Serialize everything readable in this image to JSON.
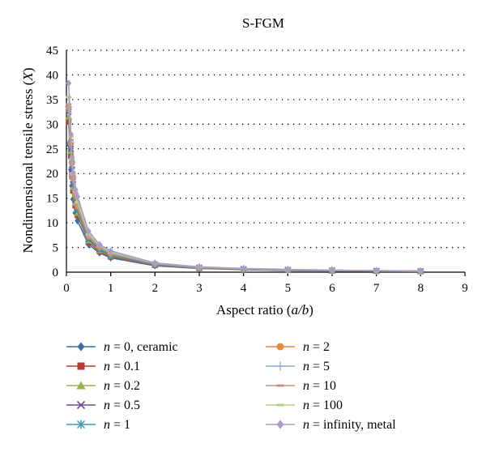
{
  "chart_data": {
    "type": "line",
    "title": "S-FGM",
    "xlabel": "Aspect ratio (a/b)",
    "ylabel": "Nondimensional tensile stress (X)",
    "xlim": [
      0,
      9
    ],
    "ylim": [
      0,
      45
    ],
    "x_ticks": [
      "0",
      "1",
      "2",
      "3",
      "4",
      "5",
      "6",
      "7",
      "8",
      "9"
    ],
    "y_ticks": [
      "0",
      "5",
      "10",
      "15",
      "20",
      "25",
      "30",
      "35",
      "40",
      "45"
    ],
    "grid": "horizontal dotted",
    "legend_position": "bottom",
    "x": [
      0.05,
      0.1,
      0.125,
      0.15,
      0.2,
      0.25,
      0.5,
      0.75,
      1,
      2,
      3,
      4,
      5,
      6,
      7,
      8
    ],
    "series": [
      {
        "name": "n = 0, ceramic",
        "color": "#3d6fa8",
        "marker": "diamond",
        "values": [
          26.0,
          20.8,
          17.5,
          14.8,
          12.0,
          10.4,
          5.6,
          3.9,
          2.9,
          1.3,
          0.75,
          0.5,
          0.35,
          0.25,
          0.2,
          0.15
        ]
      },
      {
        "name": "n = 0.1",
        "color": "#b3403e",
        "marker": "square",
        "values": [
          30.5,
          23.5,
          19.5,
          16.5,
          13.5,
          11.5,
          6.1,
          4.2,
          3.1,
          1.4,
          0.8,
          0.55,
          0.4,
          0.3,
          0.22,
          0.17
        ]
      },
      {
        "name": "n = 0.2",
        "color": "#93b54a",
        "marker": "triangle",
        "values": [
          31.5,
          24.5,
          20.0,
          17.2,
          14.0,
          12.0,
          6.4,
          4.4,
          3.3,
          1.5,
          0.85,
          0.58,
          0.42,
          0.32,
          0.24,
          0.18
        ]
      },
      {
        "name": "n = 0.5",
        "color": "#6e4f96",
        "marker": "x",
        "values": [
          32.5,
          25.0,
          20.8,
          17.8,
          14.6,
          12.5,
          6.7,
          4.6,
          3.4,
          1.55,
          0.9,
          0.6,
          0.45,
          0.33,
          0.25,
          0.19
        ]
      },
      {
        "name": "n = 1",
        "color": "#3d9bb5",
        "marker": "star",
        "values": [
          33.0,
          25.5,
          21.5,
          18.3,
          15.0,
          12.8,
          6.9,
          4.8,
          3.5,
          1.6,
          0.92,
          0.62,
          0.46,
          0.34,
          0.26,
          0.2
        ]
      },
      {
        "name": "n = 2",
        "color": "#e48a3a",
        "marker": "circle",
        "values": [
          33.2,
          25.9,
          22.0,
          18.9,
          15.4,
          13.2,
          7.2,
          5.0,
          3.7,
          1.7,
          0.95,
          0.65,
          0.48,
          0.36,
          0.27,
          0.21
        ]
      },
      {
        "name": "n = 5",
        "color": "#8aa8d4",
        "marker": "plus",
        "values": [
          33.5,
          26.3,
          22.3,
          19.2,
          15.8,
          13.6,
          7.4,
          5.1,
          3.8,
          1.75,
          0.98,
          0.67,
          0.5,
          0.37,
          0.28,
          0.22
        ]
      },
      {
        "name": "n = 10",
        "color": "#d08a88",
        "marker": "dash",
        "values": [
          34.0,
          26.8,
          22.6,
          19.5,
          16.0,
          13.8,
          7.5,
          5.2,
          3.9,
          1.8,
          1.0,
          0.68,
          0.51,
          0.38,
          0.29,
          0.22
        ]
      },
      {
        "name": "n = 100",
        "color": "#b5cf85",
        "marker": "dash",
        "values": [
          35.5,
          27.5,
          23.0,
          19.9,
          16.4,
          14.2,
          7.7,
          5.4,
          4.0,
          1.85,
          1.03,
          0.7,
          0.52,
          0.39,
          0.3,
          0.23
        ]
      },
      {
        "name": "n = infinity, metal",
        "color": "#a99bcb",
        "marker": "diamond",
        "values": [
          38.3,
          28.0,
          23.4,
          20.2,
          16.8,
          15.3,
          8.3,
          5.6,
          4.3,
          1.85,
          1.08,
          0.75,
          0.56,
          0.42,
          0.32,
          0.25
        ]
      }
    ]
  }
}
